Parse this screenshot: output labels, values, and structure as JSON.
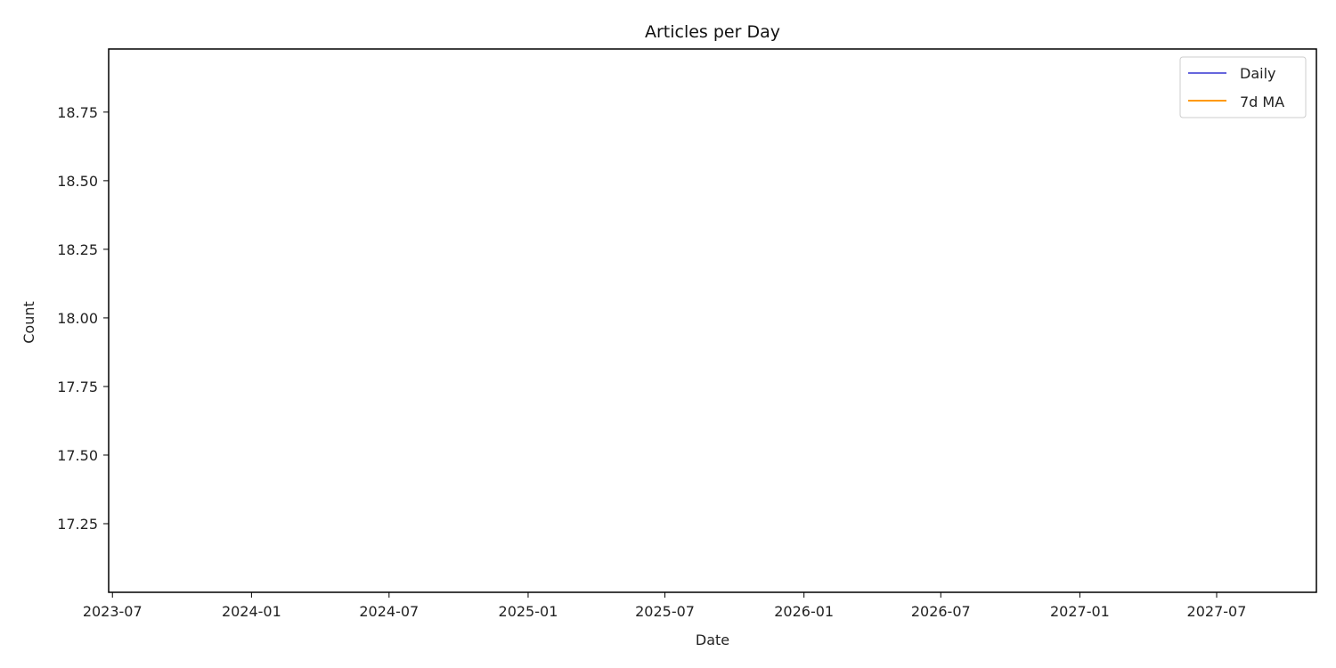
{
  "chart_data": {
    "type": "line",
    "title": "Articles per Day",
    "xlabel": "Date",
    "ylabel": "Count",
    "x_ticks": [
      "2023-07",
      "2024-01",
      "2024-07",
      "2025-01",
      "2025-07",
      "2026-01",
      "2026-07",
      "2027-01",
      "2027-07"
    ],
    "y_ticks": [
      "17.25",
      "17.50",
      "17.75",
      "18.00",
      "18.25",
      "18.50",
      "18.75"
    ],
    "ylim": [
      17.0,
      18.98
    ],
    "xlim": [
      "2023-06-26",
      "2027-11-10"
    ],
    "grid": false,
    "legend_position": "top-right",
    "series": [
      {
        "name": "Daily",
        "color": "#6666dd",
        "values": []
      },
      {
        "name": "7d MA",
        "color": "#ff9900",
        "values": []
      }
    ]
  }
}
